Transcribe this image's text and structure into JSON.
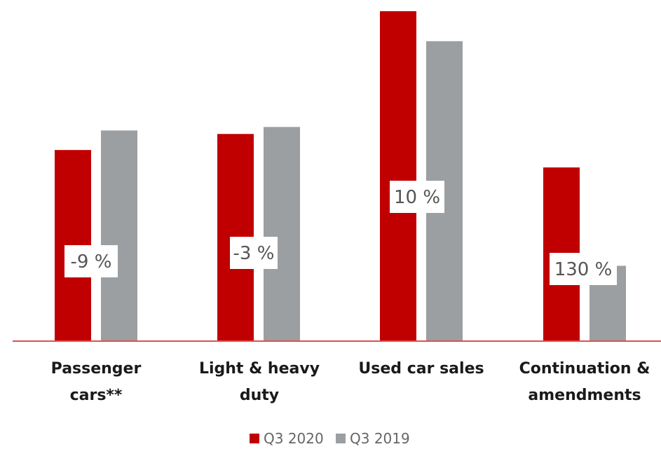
{
  "colors": {
    "q3_2020": "#c00000",
    "q3_2019": "#9b9fa2",
    "baseline": "#e05050",
    "label_text": "#1a1a1a",
    "pct_text": "#555555"
  },
  "chart_data": {
    "type": "bar",
    "title": "",
    "xlabel": "",
    "ylabel": "",
    "ylim": [
      0,
      475
    ],
    "grid": false,
    "legend_position": "bottom-center",
    "categories": [
      [
        "Passenger",
        "cars**"
      ],
      [
        "Light & heavy",
        "duty"
      ],
      [
        "Used car sales"
      ],
      [
        "Continuation &",
        "amendments"
      ]
    ],
    "series": [
      {
        "name": "Q3 2020",
        "values": [
          274,
          297,
          473,
          249
        ]
      },
      {
        "name": "Q3 2019",
        "values": [
          302,
          307,
          430,
          108
        ]
      }
    ],
    "annotations": [
      "-9 %",
      "-3 %",
      "10 %",
      "130 %"
    ]
  }
}
